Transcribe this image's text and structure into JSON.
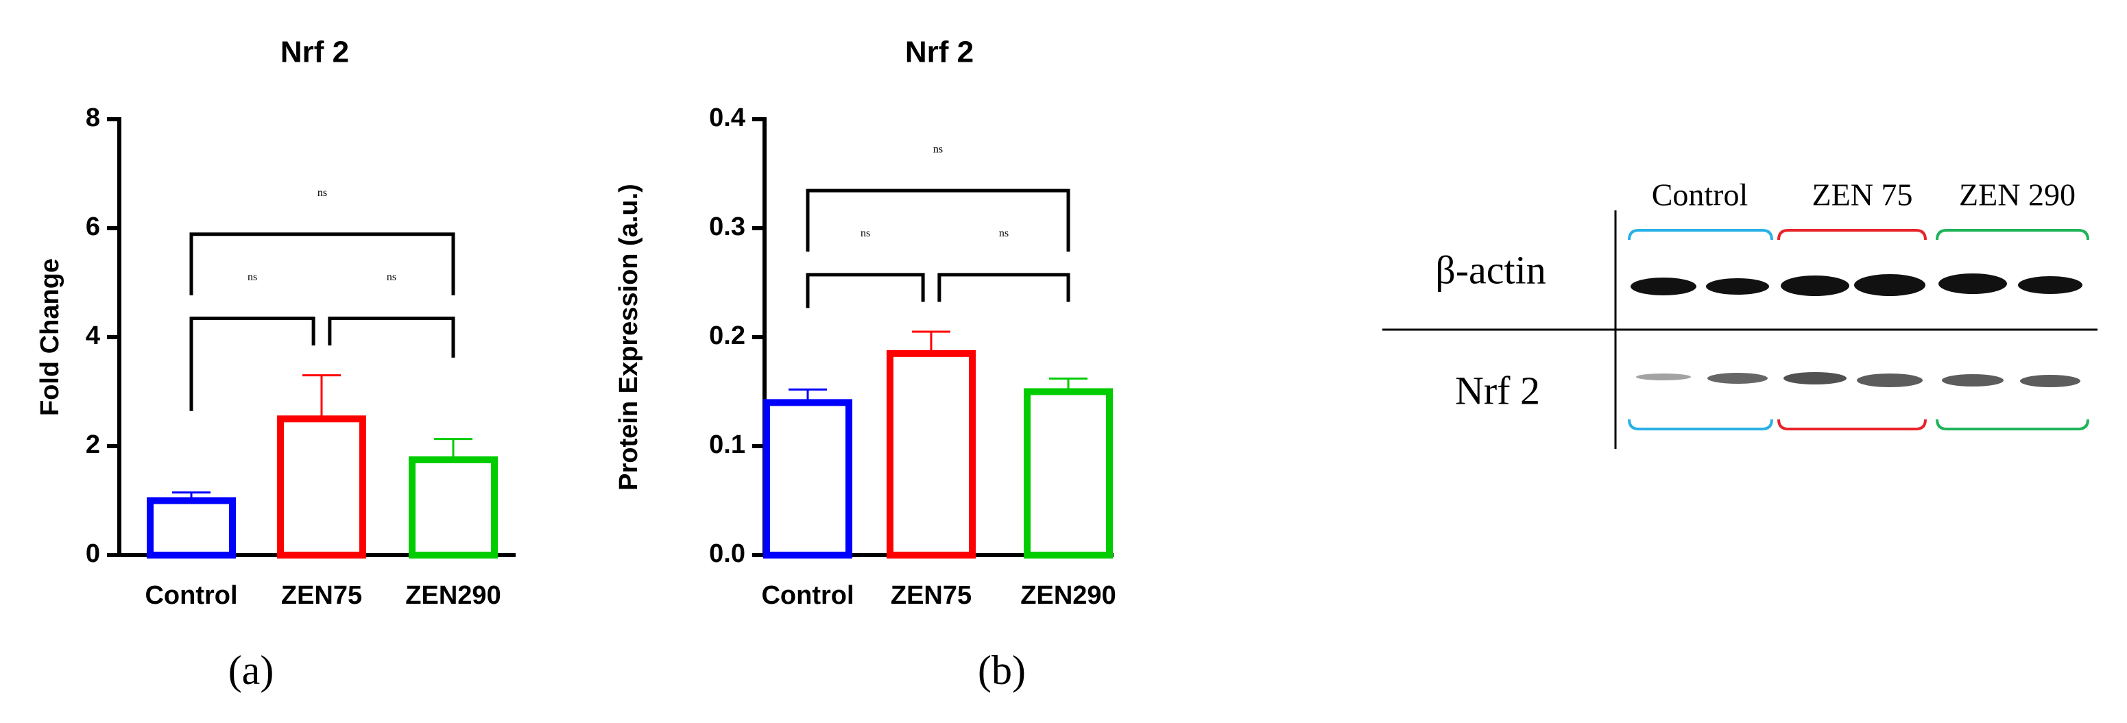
{
  "chart_data": [
    {
      "type": "bar",
      "title": "Nrf 2",
      "label": "(a)",
      "ylabel": "Fold Change",
      "categories": [
        "Control",
        "ZEN75",
        "ZEN290"
      ],
      "values": [
        1.0,
        2.5,
        1.75
      ],
      "errors": [
        0.15,
        0.8,
        0.38
      ],
      "colors": [
        "#0000ff",
        "#ff0000",
        "#00cc00"
      ],
      "ylim": [
        0,
        8
      ],
      "yticks": [
        0,
        2,
        4,
        6,
        8
      ],
      "comparisons": [
        {
          "pair": [
            "Control",
            "ZEN75"
          ],
          "text": "ns"
        },
        {
          "pair": [
            "ZEN75",
            "ZEN290"
          ],
          "text": "ns"
        },
        {
          "pair": [
            "Control",
            "ZEN290"
          ],
          "text": "ns"
        }
      ]
    },
    {
      "type": "bar",
      "title": "Nrf 2",
      "label": "(b)",
      "ylabel": "Protein Expression (a.u.)",
      "categories": [
        "Control",
        "ZEN75",
        "ZEN290"
      ],
      "values": [
        0.14,
        0.185,
        0.15
      ],
      "errors": [
        0.012,
        0.02,
        0.012
      ],
      "colors": [
        "#0000ff",
        "#ff0000",
        "#00cc00"
      ],
      "ylim": [
        0,
        0.4
      ],
      "yticks": [
        {
          "value": 0,
          "label": "0.0"
        },
        0.1,
        0.2,
        0.3,
        0.4
      ],
      "comparisons": [
        {
          "pair": [
            "Control",
            "ZEN75"
          ],
          "text": "ns"
        },
        {
          "pair": [
            "ZEN75",
            "ZEN290"
          ],
          "text": "ns"
        },
        {
          "pair": [
            "Control",
            "ZEN290"
          ],
          "text": "ns"
        }
      ]
    }
  ],
  "blot": {
    "groups": [
      "Control",
      "ZEN 75",
      "ZEN 290"
    ],
    "rows": [
      "β-actin",
      "Nrf 2"
    ]
  }
}
